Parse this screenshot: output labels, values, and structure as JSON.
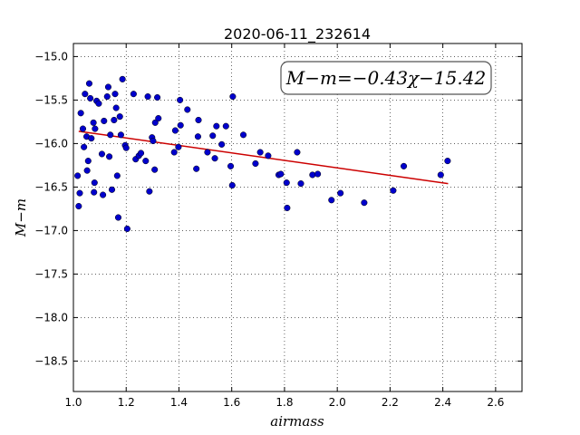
{
  "chart_data": {
    "type": "scatter",
    "title": "2020-06-11_232614",
    "xlabel": "airmass",
    "ylabel": "M−m",
    "xlim": [
      1.0,
      2.7
    ],
    "ylim": [
      -18.85,
      -14.85
    ],
    "y_inverted": true,
    "grid": true,
    "xticks": [
      1.0,
      1.2,
      1.4,
      1.6,
      1.8,
      2.0,
      2.2,
      2.4,
      2.6
    ],
    "xtick_labels": [
      "1.0",
      "1.2",
      "1.4",
      "1.6",
      "1.8",
      "2.0",
      "2.2",
      "2.4",
      "2.6"
    ],
    "yticks": [
      -15.0,
      -15.5,
      -16.0,
      -16.5,
      -17.0,
      -17.5,
      -18.0,
      -18.5
    ],
    "ytick_labels": [
      "−15.0",
      "−15.5",
      "−16.0",
      "−16.5",
      "−17.0",
      "−17.5",
      "−18.0",
      "−18.5"
    ],
    "annotation": "M−m=−0.43χ−15.42",
    "point_color": "#0000cc",
    "fit_color": "#cc0000",
    "fit": {
      "slope": -0.43,
      "intercept": -15.42,
      "x_range": [
        1.02,
        2.42
      ]
    },
    "points": [
      [
        1.016,
        -16.37
      ],
      [
        1.02,
        -16.72
      ],
      [
        1.024,
        -16.57
      ],
      [
        1.028,
        -15.65
      ],
      [
        1.036,
        -15.83
      ],
      [
        1.04,
        -16.04
      ],
      [
        1.044,
        -15.43
      ],
      [
        1.05,
        -15.92
      ],
      [
        1.052,
        -16.31
      ],
      [
        1.056,
        -16.2
      ],
      [
        1.06,
        -15.31
      ],
      [
        1.064,
        -15.48
      ],
      [
        1.068,
        -15.94
      ],
      [
        1.076,
        -15.76
      ],
      [
        1.078,
        -16.56
      ],
      [
        1.08,
        -16.45
      ],
      [
        1.082,
        -15.83
      ],
      [
        1.088,
        -15.51
      ],
      [
        1.096,
        -15.54
      ],
      [
        1.108,
        -16.12
      ],
      [
        1.112,
        -16.59
      ],
      [
        1.116,
        -15.74
      ],
      [
        1.128,
        -15.46
      ],
      [
        1.132,
        -15.35
      ],
      [
        1.136,
        -16.15
      ],
      [
        1.14,
        -15.9
      ],
      [
        1.146,
        -16.53
      ],
      [
        1.154,
        -15.73
      ],
      [
        1.158,
        -15.43
      ],
      [
        1.162,
        -15.59
      ],
      [
        1.166,
        -16.37
      ],
      [
        1.17,
        -16.85
      ],
      [
        1.176,
        -15.69
      ],
      [
        1.18,
        -15.9
      ],
      [
        1.186,
        -15.26
      ],
      [
        1.196,
        -16.02
      ],
      [
        1.2,
        -16.05
      ],
      [
        1.204,
        -16.98
      ],
      [
        1.228,
        -15.43
      ],
      [
        1.236,
        -16.18
      ],
      [
        1.248,
        -16.14
      ],
      [
        1.256,
        -16.11
      ],
      [
        1.274,
        -16.2
      ],
      [
        1.282,
        -15.46
      ],
      [
        1.288,
        -16.55
      ],
      [
        1.298,
        -15.93
      ],
      [
        1.302,
        -15.97
      ],
      [
        1.308,
        -16.3
      ],
      [
        1.31,
        -15.76
      ],
      [
        1.318,
        -15.47
      ],
      [
        1.322,
        -15.71
      ],
      [
        1.382,
        -16.1
      ],
      [
        1.386,
        -15.85
      ],
      [
        1.398,
        -16.04
      ],
      [
        1.404,
        -15.5
      ],
      [
        1.406,
        -15.79
      ],
      [
        1.432,
        -15.61
      ],
      [
        1.466,
        -16.29
      ],
      [
        1.472,
        -15.92
      ],
      [
        1.474,
        -15.73
      ],
      [
        1.508,
        -16.1
      ],
      [
        1.528,
        -15.91
      ],
      [
        1.536,
        -16.17
      ],
      [
        1.542,
        -15.8
      ],
      [
        1.562,
        -16.01
      ],
      [
        1.578,
        -15.8
      ],
      [
        1.596,
        -16.26
      ],
      [
        1.602,
        -16.48
      ],
      [
        1.604,
        -15.46
      ],
      [
        1.644,
        -15.9
      ],
      [
        1.69,
        -16.23
      ],
      [
        1.708,
        -16.1
      ],
      [
        1.738,
        -16.14
      ],
      [
        1.778,
        -16.36
      ],
      [
        1.786,
        -16.35
      ],
      [
        1.808,
        -16.45
      ],
      [
        1.81,
        -16.74
      ],
      [
        1.848,
        -16.1
      ],
      [
        1.862,
        -16.46
      ],
      [
        1.906,
        -16.36
      ],
      [
        1.926,
        -16.35
      ],
      [
        1.978,
        -16.65
      ],
      [
        2.012,
        -16.57
      ],
      [
        2.102,
        -16.68
      ],
      [
        2.212,
        -16.54
      ],
      [
        2.252,
        -16.26
      ],
      [
        2.392,
        -16.36
      ],
      [
        2.418,
        -16.2
      ]
    ]
  }
}
